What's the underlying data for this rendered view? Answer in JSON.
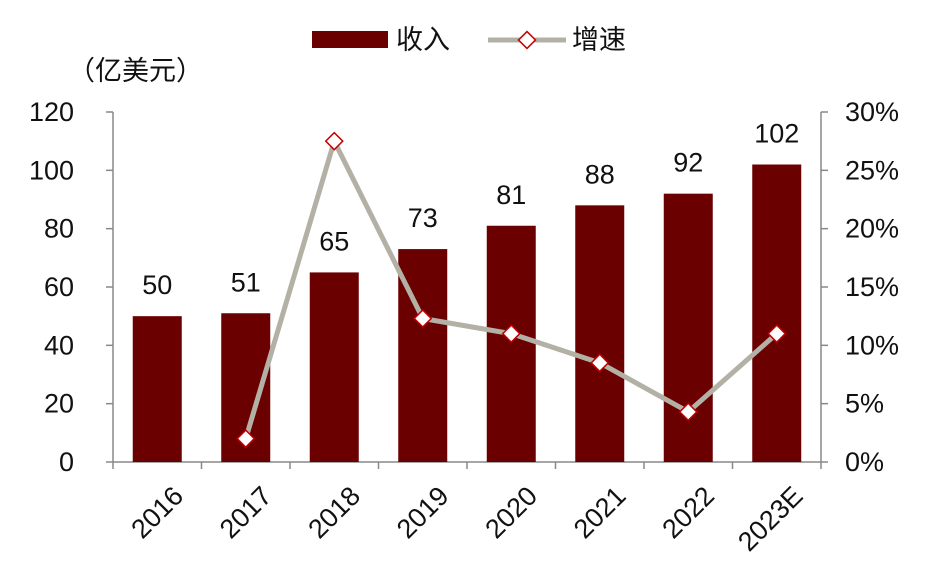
{
  "chart_data": {
    "type": "bar",
    "categories": [
      "2016",
      "2017",
      "2018",
      "2019",
      "2020",
      "2021",
      "2022",
      "2023E"
    ],
    "series": [
      {
        "name": "收入",
        "type": "bar",
        "axis": "left",
        "color": "#6b0000",
        "values": [
          50,
          51,
          65,
          73,
          81,
          88,
          92,
          102
        ]
      },
      {
        "name": "增速",
        "type": "line",
        "axis": "right",
        "color": "#b3b0a6",
        "marker_color": "#c00000",
        "values": [
          null,
          2.0,
          27.5,
          12.3,
          11.0,
          8.5,
          4.3,
          11.0
        ]
      }
    ],
    "data_labels": [
      "50",
      "51",
      "65",
      "73",
      "81",
      "88",
      "92",
      "102"
    ],
    "y_left": {
      "unit_label": "（亿美元）",
      "lim": [
        0,
        120
      ],
      "ticks": [
        "0",
        "20",
        "40",
        "60",
        "80",
        "100",
        "120"
      ]
    },
    "y_right": {
      "lim": [
        0,
        30
      ],
      "ticks": [
        "0%",
        "5%",
        "10%",
        "15%",
        "20%",
        "25%",
        "30%"
      ]
    },
    "legend": {
      "position": "top-center",
      "items": [
        "收入",
        "增速"
      ]
    },
    "grid": false
  }
}
